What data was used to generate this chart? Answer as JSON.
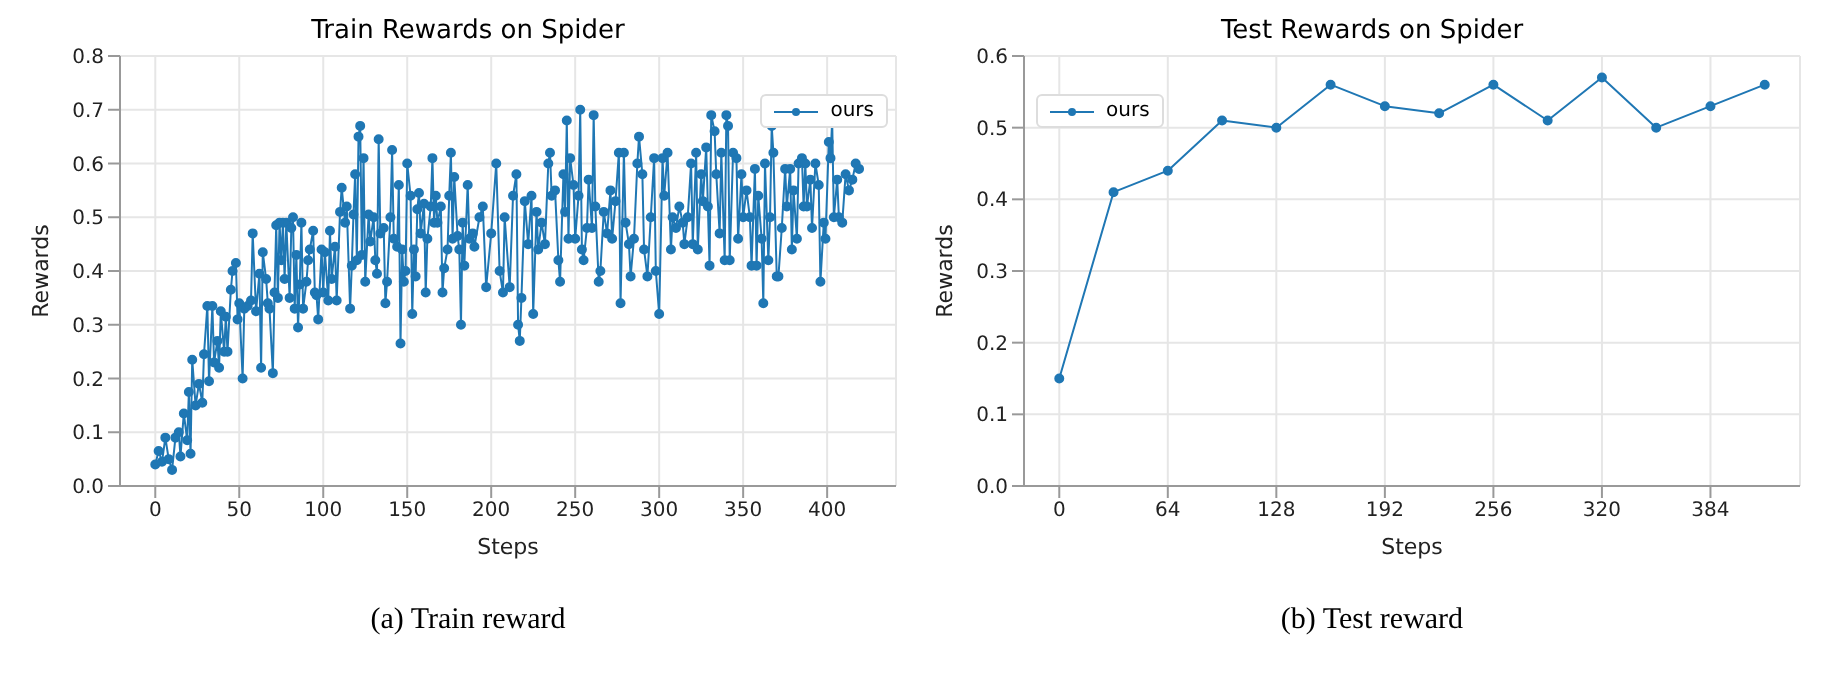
{
  "chart_data": [
    {
      "type": "line",
      "title": "Train Rewards on Spider",
      "xlabel": "Steps",
      "ylabel": "Rewards",
      "annotations": [
        "(a) Train reward"
      ],
      "legend": "top right",
      "grid": true,
      "marker": "circle",
      "line_style": "solid",
      "xlim": [
        -21,
        441
      ],
      "xticks": [
        0,
        50,
        100,
        150,
        200,
        250,
        300,
        350,
        400
      ],
      "ylim": [
        0,
        0.8
      ],
      "yticks": [
        {
          "value": 0,
          "label": "0.0"
        },
        0.1,
        0.2,
        0.3,
        0.4,
        0.5,
        0.6,
        0.7,
        0.8
      ],
      "x": [
        0,
        2,
        4,
        6,
        8,
        10,
        12,
        14,
        15,
        17,
        19,
        20,
        21,
        22,
        24,
        26,
        28,
        29,
        31,
        32,
        34,
        35,
        37,
        38,
        39,
        41,
        42,
        43,
        45,
        46,
        48,
        49,
        50,
        52,
        53,
        55,
        57,
        58,
        60,
        62,
        63,
        64,
        66,
        67,
        68,
        70,
        71,
        72,
        73,
        74,
        75,
        76,
        77,
        78,
        80,
        81,
        82,
        83,
        84,
        85,
        86,
        87,
        88,
        90,
        91,
        92,
        94,
        95,
        96,
        97,
        99,
        100,
        101,
        103,
        104,
        105,
        107,
        108,
        110,
        111,
        113,
        114,
        116,
        117,
        118,
        119,
        120,
        121,
        122,
        123,
        124,
        125,
        127,
        128,
        130,
        131,
        132,
        133,
        134,
        136,
        137,
        138,
        140,
        141,
        142,
        144,
        145,
        146,
        147,
        148,
        149,
        150,
        152,
        153,
        154,
        155,
        156,
        157,
        158,
        160,
        161,
        162,
        164,
        165,
        166,
        167,
        168,
        170,
        171,
        172,
        174,
        175,
        176,
        177,
        178,
        180,
        181,
        182,
        183,
        184,
        186,
        187,
        189,
        190,
        193,
        195,
        197,
        200,
        203,
        205,
        207,
        208,
        211,
        213,
        215,
        216,
        217,
        218,
        220,
        222,
        224,
        225,
        227,
        228,
        230,
        232,
        234,
        235,
        236,
        238,
        240,
        241,
        243,
        244,
        245,
        246,
        247,
        249,
        250,
        252,
        253,
        254,
        255,
        257,
        258,
        260,
        261,
        262,
        264,
        265,
        267,
        269,
        271,
        272,
        274,
        276,
        277,
        279,
        280,
        282,
        283,
        285,
        287,
        288,
        290,
        291,
        293,
        295,
        297,
        298,
        300,
        302,
        303,
        305,
        307,
        308,
        310,
        312,
        314,
        315,
        317,
        319,
        320,
        322,
        323,
        325,
        326,
        328,
        329,
        330,
        331,
        333,
        334,
        336,
        337,
        339,
        340,
        341,
        342,
        344,
        346,
        347,
        349,
        350,
        352,
        354,
        355,
        357,
        358,
        359,
        361,
        362,
        363,
        365,
        366,
        367,
        368,
        370,
        371,
        373,
        375,
        376,
        378,
        379,
        380,
        382,
        383,
        385,
        386,
        387,
        388,
        390,
        391,
        393,
        395,
        396,
        398,
        399,
        401,
        402,
        403,
        404,
        406,
        407,
        409,
        411,
        413,
        415,
        417,
        419
      ],
      "series": [
        {
          "name": "ours",
          "color": "#1f77b4",
          "values": [
            0.04,
            0.065,
            0.045,
            0.09,
            0.05,
            0.03,
            0.09,
            0.1,
            0.055,
            0.135,
            0.085,
            0.175,
            0.06,
            0.235,
            0.15,
            0.19,
            0.155,
            0.245,
            0.335,
            0.195,
            0.335,
            0.23,
            0.27,
            0.22,
            0.325,
            0.25,
            0.315,
            0.25,
            0.365,
            0.4,
            0.415,
            0.31,
            0.34,
            0.2,
            0.33,
            0.335,
            0.345,
            0.47,
            0.325,
            0.395,
            0.22,
            0.435,
            0.385,
            0.34,
            0.33,
            0.21,
            0.36,
            0.485,
            0.35,
            0.49,
            0.42,
            0.49,
            0.385,
            0.49,
            0.35,
            0.48,
            0.5,
            0.33,
            0.43,
            0.295,
            0.375,
            0.49,
            0.33,
            0.38,
            0.42,
            0.44,
            0.475,
            0.36,
            0.355,
            0.31,
            0.44,
            0.36,
            0.435,
            0.345,
            0.475,
            0.385,
            0.445,
            0.345,
            0.51,
            0.555,
            0.49,
            0.52,
            0.33,
            0.41,
            0.505,
            0.58,
            0.42,
            0.65,
            0.67,
            0.43,
            0.61,
            0.38,
            0.505,
            0.455,
            0.5,
            0.42,
            0.395,
            0.645,
            0.47,
            0.48,
            0.34,
            0.38,
            0.5,
            0.625,
            0.46,
            0.445,
            0.56,
            0.265,
            0.44,
            0.38,
            0.4,
            0.6,
            0.54,
            0.32,
            0.44,
            0.39,
            0.515,
            0.545,
            0.47,
            0.525,
            0.36,
            0.46,
            0.52,
            0.61,
            0.49,
            0.54,
            0.49,
            0.52,
            0.36,
            0.405,
            0.44,
            0.54,
            0.62,
            0.46,
            0.575,
            0.465,
            0.44,
            0.3,
            0.49,
            0.41,
            0.56,
            0.46,
            0.47,
            0.445,
            0.5,
            0.52,
            0.37,
            0.47,
            0.6,
            0.4,
            0.36,
            0.5,
            0.37,
            0.54,
            0.58,
            0.3,
            0.27,
            0.35,
            0.53,
            0.45,
            0.54,
            0.32,
            0.51,
            0.44,
            0.49,
            0.45,
            0.6,
            0.62,
            0.54,
            0.55,
            0.42,
            0.38,
            0.58,
            0.51,
            0.68,
            0.46,
            0.61,
            0.56,
            0.46,
            0.54,
            0.7,
            0.44,
            0.42,
            0.48,
            0.57,
            0.48,
            0.69,
            0.52,
            0.38,
            0.4,
            0.51,
            0.47,
            0.55,
            0.46,
            0.53,
            0.62,
            0.34,
            0.62,
            0.49,
            0.45,
            0.39,
            0.46,
            0.6,
            0.65,
            0.58,
            0.44,
            0.39,
            0.5,
            0.61,
            0.4,
            0.32,
            0.61,
            0.54,
            0.62,
            0.44,
            0.5,
            0.48,
            0.52,
            0.49,
            0.45,
            0.5,
            0.6,
            0.45,
            0.62,
            0.44,
            0.58,
            0.53,
            0.63,
            0.52,
            0.41,
            0.69,
            0.66,
            0.58,
            0.47,
            0.62,
            0.42,
            0.69,
            0.67,
            0.42,
            0.62,
            0.61,
            0.46,
            0.58,
            0.5,
            0.55,
            0.5,
            0.41,
            0.59,
            0.41,
            0.54,
            0.46,
            0.34,
            0.6,
            0.42,
            0.5,
            0.67,
            0.62,
            0.39,
            0.39,
            0.48,
            0.59,
            0.52,
            0.59,
            0.44,
            0.55,
            0.46,
            0.6,
            0.61,
            0.52,
            0.6,
            0.52,
            0.57,
            0.48,
            0.6,
            0.56,
            0.38,
            0.49,
            0.46,
            0.64,
            0.61,
            0.68,
            0.5,
            0.57,
            0.5,
            0.49,
            0.58,
            0.55,
            0.57,
            0.6,
            0.59
          ]
        }
      ]
    },
    {
      "type": "line",
      "title": "Test Rewards on Spider",
      "xlabel": "Steps",
      "ylabel": "Rewards",
      "annotations": [
        "(b) Test reward"
      ],
      "legend": "top left",
      "grid": true,
      "marker": "circle",
      "line_style": "solid",
      "xlim": [
        -20.8,
        436.8
      ],
      "xticks": [
        0,
        64,
        128,
        192,
        256,
        320,
        384
      ],
      "ylim": [
        0,
        0.6
      ],
      "yticks": [
        {
          "value": 0,
          "label": "0.0"
        },
        0.1,
        0.2,
        0.3,
        0.4,
        0.5,
        0.6
      ],
      "x": [
        0,
        32,
        64,
        96,
        128,
        160,
        192,
        224,
        256,
        288,
        320,
        352,
        384,
        416
      ],
      "series": [
        {
          "name": "ours",
          "color": "#1f77b4",
          "values": [
            0.15,
            0.41,
            0.44,
            0.51,
            0.5,
            0.56,
            0.53,
            0.52,
            0.56,
            0.51,
            0.57,
            0.5,
            0.53,
            0.56
          ]
        }
      ]
    }
  ]
}
